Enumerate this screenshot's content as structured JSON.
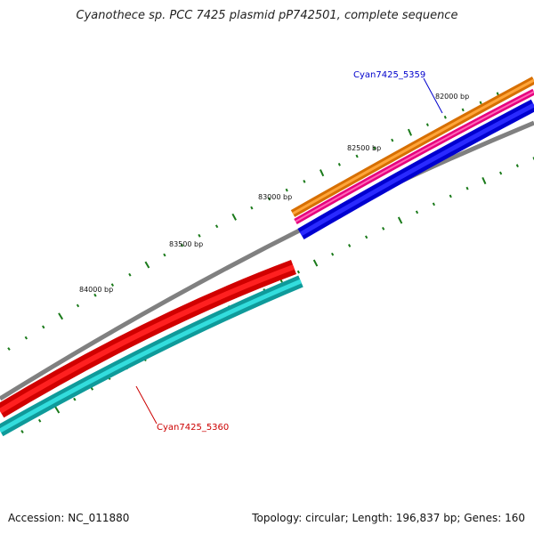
{
  "title": "Cyanothece sp. PCC 7425 plasmid pP742501, complete sequence",
  "footer": {
    "accession_label": "Accession:",
    "accession": "NC_011880",
    "topology_label": "Topology:",
    "topology": "circular",
    "length_label": "Length:",
    "length": "196,837 bp",
    "genes_label": "Genes:",
    "genes": "160"
  },
  "map": {
    "tick_labels": [
      "82000 bp",
      "82500 bp",
      "83000 bp",
      "83500 bp",
      "84000 bp"
    ],
    "genes": [
      {
        "name": "Cyan7425_5359",
        "label_color": "#0000cc"
      },
      {
        "name": "Cyan7425_5360",
        "label_color": "#cc0000"
      }
    ],
    "colors": {
      "backbone": "#808080",
      "tick": "#1a7a1a",
      "gene_5359_tracks": [
        "#ff8c00",
        "#ff3399",
        "#0000ff"
      ],
      "gene_5360_tracks": [
        "#ff0000",
        "#22cccc"
      ]
    }
  }
}
